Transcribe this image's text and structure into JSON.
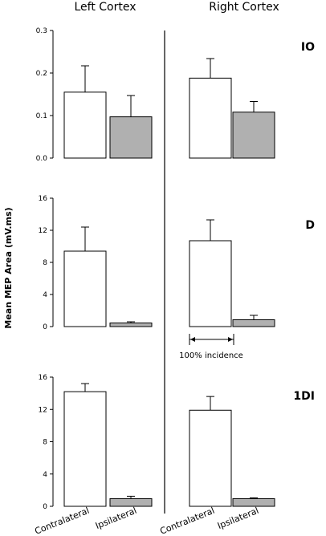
{
  "chart_data": {
    "type": "bar",
    "column_titles": [
      "Left Cortex",
      "Right Cortex"
    ],
    "ylabel": "Mean MEP Area (mV.ms)",
    "categories": [
      "Contralateral",
      "Ipsilateral"
    ],
    "colors": {
      "contralateral": "#ffffff",
      "ipsilateral": "#b0b0b0"
    },
    "panels": [
      {
        "label": "IO",
        "ylim": [
          0,
          0.3
        ],
        "yticks": [
          "0.0",
          "0.1",
          "0.2",
          "0.3"
        ],
        "yticks_values": [
          0,
          0.1,
          0.2,
          0.3
        ],
        "left": {
          "values": [
            0.155,
            0.097
          ],
          "errors": [
            0.062,
            0.05
          ]
        },
        "right": {
          "values": [
            0.188,
            0.108
          ],
          "errors": [
            0.046,
            0.025
          ]
        }
      },
      {
        "label": "D",
        "ylim": [
          0,
          16
        ],
        "yticks": [
          "0",
          "4",
          "8",
          "12",
          "16"
        ],
        "yticks_values": [
          0,
          4,
          8,
          12,
          16
        ],
        "left": {
          "values": [
            9.4,
            0.45
          ],
          "errors": [
            3.0,
            0.15
          ]
        },
        "right": {
          "values": [
            10.7,
            0.85
          ],
          "errors": [
            2.6,
            0.55
          ]
        }
      },
      {
        "label": "1DI",
        "ylim": [
          0,
          16
        ],
        "yticks": [
          "0",
          "4",
          "8",
          "12",
          "16"
        ],
        "yticks_values": [
          0,
          4,
          8,
          12,
          16
        ],
        "left": {
          "values": [
            14.2,
            0.95
          ],
          "errors": [
            1.0,
            0.3
          ]
        },
        "right": {
          "values": [
            11.9,
            0.95
          ],
          "errors": [
            1.7,
            0.1
          ]
        }
      }
    ],
    "annotation": "100% incidence"
  }
}
